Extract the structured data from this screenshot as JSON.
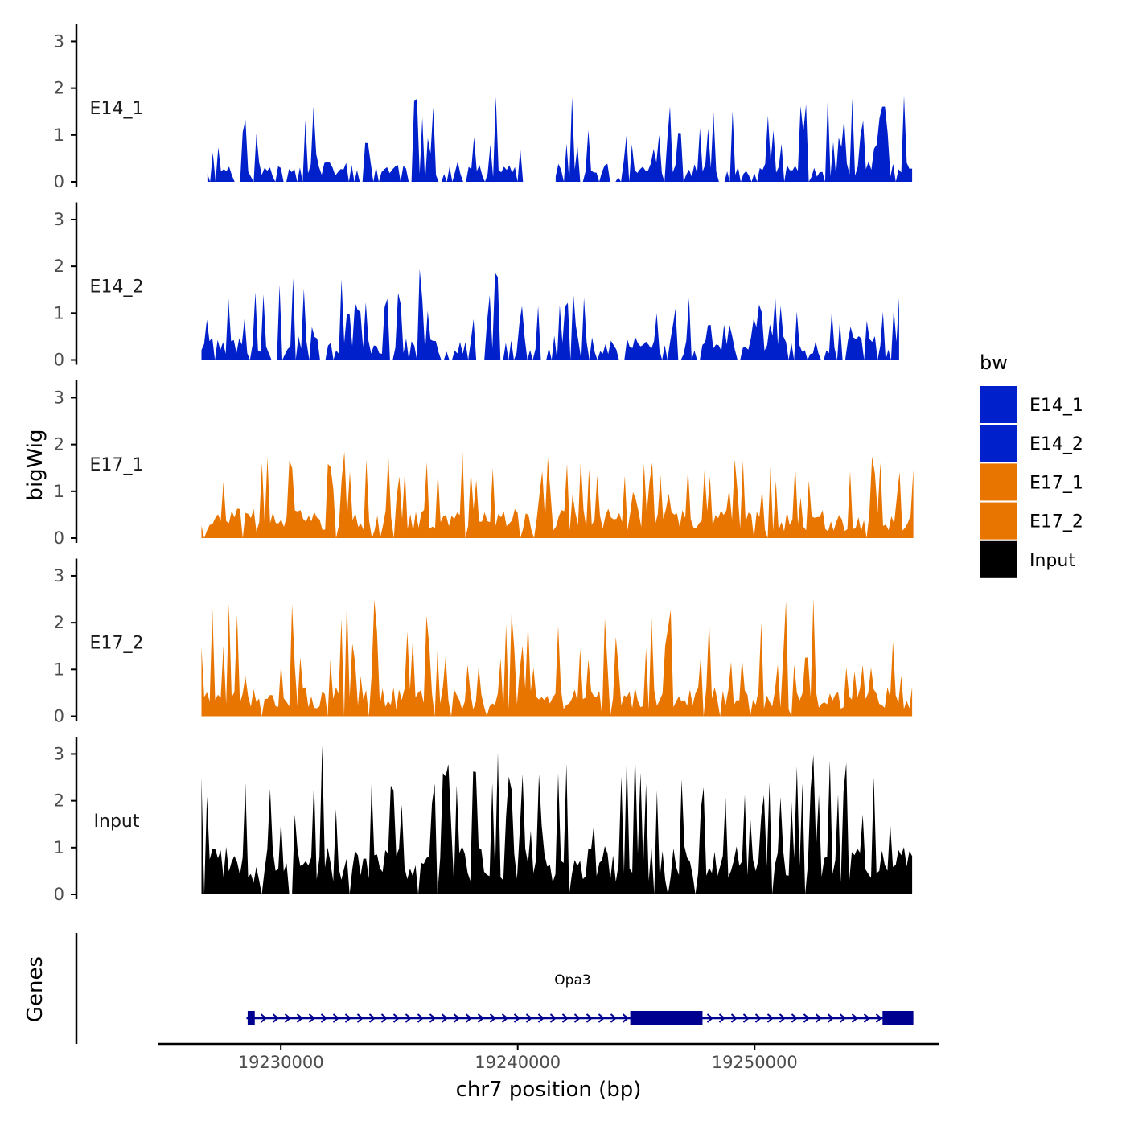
{
  "chart_data": {
    "type": "area",
    "ylabel": "bigWig",
    "xlabel": "chr7 position (bp)",
    "genes_label": "Genes",
    "xlim": [
      19224800,
      19257800
    ],
    "ylim": [
      0,
      3.3
    ],
    "y_ticks": [
      "0",
      "1",
      "2",
      "3"
    ],
    "x_ticks": [
      {
        "value": 19230000,
        "label": "19230000"
      },
      {
        "value": 19240000,
        "label": "19240000"
      },
      {
        "value": 19250000,
        "label": "19250000"
      }
    ],
    "legend": {
      "title": "bw",
      "position": "right",
      "entries": [
        {
          "label": "E14_1",
          "color": "#0020CC"
        },
        {
          "label": "E14_2",
          "color": "#0020CC"
        },
        {
          "label": "E17_1",
          "color": "#E87500"
        },
        {
          "label": "E17_2",
          "color": "#E87500"
        },
        {
          "label": "Input",
          "color": "#000000"
        }
      ]
    },
    "series": [
      {
        "name": "E14_1",
        "color": "#0020CC",
        "x_start": 19226900,
        "x_end": 19256650,
        "seed": 11,
        "mean": 0.38,
        "peak": 1.85,
        "gaps": [
          [
            19240250,
            19241500
          ]
        ]
      },
      {
        "name": "E14_2",
        "color": "#0020CC",
        "x_start": 19226650,
        "x_end": 19256100,
        "seed": 23,
        "mean": 0.45,
        "peak": 1.95,
        "gaps": []
      },
      {
        "name": "E17_1",
        "color": "#E87500",
        "x_start": 19226650,
        "x_end": 19256700,
        "seed": 37,
        "mean": 0.55,
        "peak": 1.85,
        "gaps": []
      },
      {
        "name": "E17_2",
        "color": "#E87500",
        "x_start": 19226650,
        "x_end": 19256650,
        "seed": 51,
        "mean": 0.55,
        "peak": 2.55,
        "gaps": []
      },
      {
        "name": "Input",
        "color": "#000000",
        "x_start": 19226650,
        "x_end": 19256650,
        "seed": 73,
        "mean": 0.9,
        "peak": 3.2,
        "gaps": []
      }
    ],
    "gene": {
      "name": "Opa3",
      "color": "#000090",
      "strand": "+",
      "start": 19228550,
      "end": 19256700,
      "exons": [
        [
          19228600,
          19228900
        ],
        [
          19244750,
          19247800
        ],
        [
          19255400,
          19256700
        ]
      ]
    }
  }
}
